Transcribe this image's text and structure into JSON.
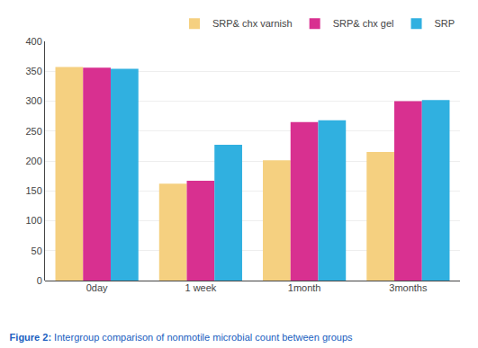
{
  "chart_data": {
    "type": "bar",
    "title": "Figure 2: Intergroup comparison of nonmotile microbial count between groups",
    "categories": [
      "0day",
      "1 week",
      "1month",
      "3months"
    ],
    "series": [
      {
        "name": "SRP& chx varnish",
        "color": "#F5D080",
        "values": [
          357,
          162,
          201,
          215
        ]
      },
      {
        "name": "SRP& chx gel",
        "color": "#D83090",
        "values": [
          356,
          167,
          265,
          300
        ]
      },
      {
        "name": "SRP",
        "color": "#30B0E0",
        "values": [
          354,
          227,
          268,
          302
        ]
      }
    ],
    "ylim": [
      0,
      400
    ],
    "yticks": [
      0,
      50,
      100,
      150,
      200,
      250,
      300,
      350,
      400
    ],
    "grid": true,
    "legend": "upper right"
  }
}
